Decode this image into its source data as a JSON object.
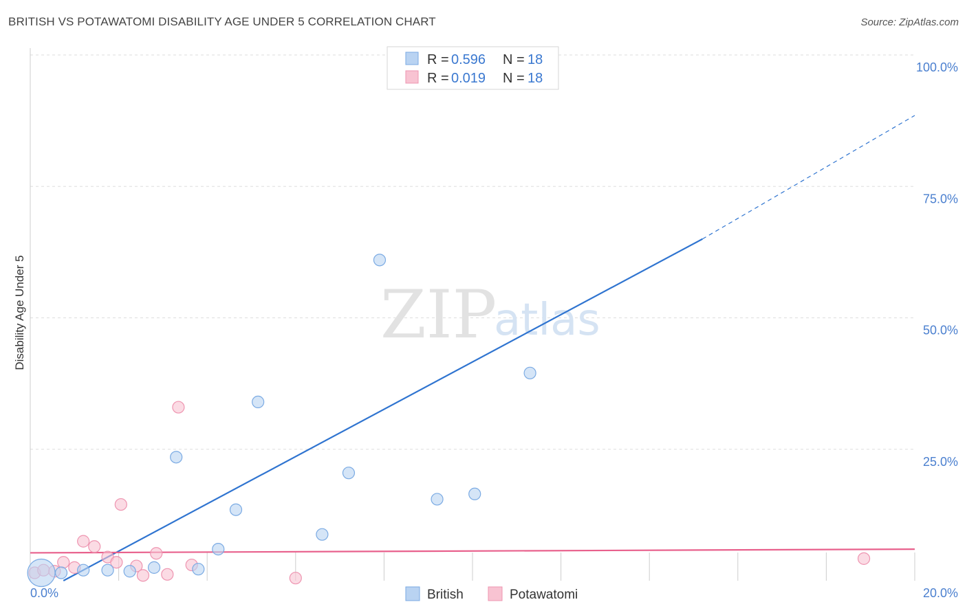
{
  "title": "BRITISH VS POTAWATOMI DISABILITY AGE UNDER 5 CORRELATION CHART",
  "source": "Source: ZipAtlas.com",
  "watermark": {
    "zip": "ZIP",
    "atlas": "atlas"
  },
  "colors": {
    "british_fill": "#b9d3f2",
    "british_stroke": "#7aaae3",
    "british_line": "#2f74d0",
    "potawatomi_fill": "#f8c3d2",
    "potawatomi_stroke": "#ee94b0",
    "potawatomi_line": "#e8608c",
    "tick_text": "#4a7fcf",
    "grid": "#dddddd"
  },
  "legend": {
    "rows": [
      {
        "r_label": "R = ",
        "r_value": "0.596",
        "n_label": "N = ",
        "n_value": "18"
      },
      {
        "r_label": "R = ",
        "r_value": "0.019",
        "n_label": "N = ",
        "n_value": "18"
      }
    ]
  },
  "bottom_legend": [
    "British",
    "Potawatomi"
  ],
  "chart_data": {
    "type": "scatter",
    "xlabel": "",
    "ylabel": "Disability Age Under 5",
    "xlim": [
      0,
      20
    ],
    "ylim": [
      0,
      100
    ],
    "x_tick_labels": [
      "0.0%",
      "20.0%"
    ],
    "y_ticks": [
      25,
      50,
      75,
      100
    ],
    "y_tick_labels": [
      "25.0%",
      "50.0%",
      "75.0%",
      "100.0%"
    ],
    "grid": true,
    "legend_position": "top-center",
    "series": [
      {
        "name": "British",
        "points": [
          {
            "x": 0.25,
            "y": 1.5,
            "big": true
          },
          {
            "x": 0.7,
            "y": 1.5
          },
          {
            "x": 1.2,
            "y": 2.0
          },
          {
            "x": 1.75,
            "y": 2.0
          },
          {
            "x": 2.25,
            "y": 1.8
          },
          {
            "x": 2.8,
            "y": 2.5
          },
          {
            "x": 3.3,
            "y": 23.5
          },
          {
            "x": 3.8,
            "y": 2.2
          },
          {
            "x": 4.25,
            "y": 6.0
          },
          {
            "x": 4.65,
            "y": 13.5
          },
          {
            "x": 5.15,
            "y": 34.0
          },
          {
            "x": 6.6,
            "y": 8.8
          },
          {
            "x": 7.2,
            "y": 20.5
          },
          {
            "x": 7.9,
            "y": 61.0
          },
          {
            "x": 8.4,
            "y": 99.5
          },
          {
            "x": 9.2,
            "y": 15.5
          },
          {
            "x": 10.05,
            "y": 16.5
          },
          {
            "x": 11.3,
            "y": 39.5
          }
        ],
        "trend": {
          "x0": 0.75,
          "y0": 0,
          "x1": 15.2,
          "y1": 65,
          "x2": 20,
          "y2": 88.5
        }
      },
      {
        "name": "Potawatomi",
        "points": [
          {
            "x": 0.1,
            "y": 1.5
          },
          {
            "x": 0.3,
            "y": 2.0
          },
          {
            "x": 0.55,
            "y": 1.8
          },
          {
            "x": 0.75,
            "y": 3.5
          },
          {
            "x": 1.0,
            "y": 2.5
          },
          {
            "x": 1.2,
            "y": 7.5
          },
          {
            "x": 1.45,
            "y": 6.5
          },
          {
            "x": 1.75,
            "y": 4.5
          },
          {
            "x": 1.95,
            "y": 3.5
          },
          {
            "x": 2.05,
            "y": 14.5
          },
          {
            "x": 2.4,
            "y": 2.8
          },
          {
            "x": 2.55,
            "y": 1.0
          },
          {
            "x": 2.85,
            "y": 5.2
          },
          {
            "x": 3.1,
            "y": 1.2
          },
          {
            "x": 3.35,
            "y": 33.0
          },
          {
            "x": 3.65,
            "y": 3.0
          },
          {
            "x": 6.0,
            "y": 0.5
          },
          {
            "x": 18.85,
            "y": 4.2
          }
        ],
        "trend": {
          "x0": 0,
          "y0": 5.3,
          "x1": 20,
          "y1": 6.0
        }
      }
    ]
  }
}
